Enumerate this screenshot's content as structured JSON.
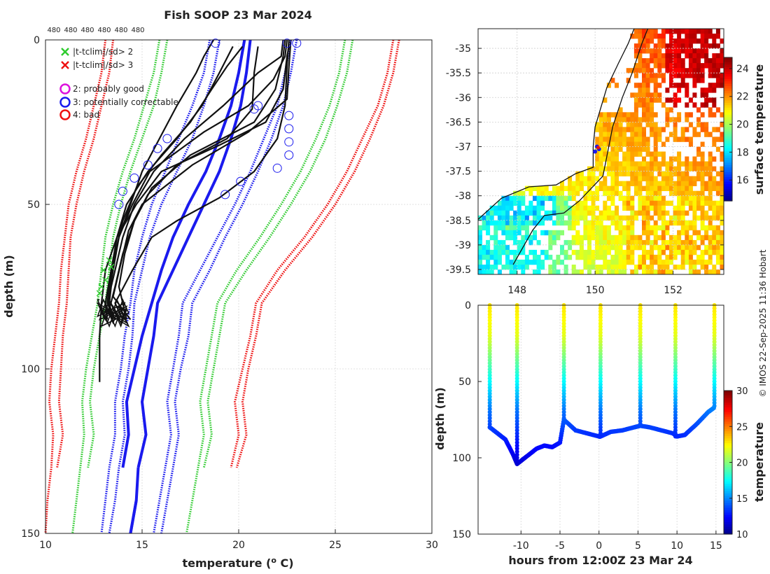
{
  "copyright": "© IMOS 22-Sep-2025 11:36 Hobart",
  "chart_data": [
    {
      "type": "line",
      "name": "temperature-profiles",
      "title": "Fish SOOP 23 Mar 2024",
      "xlabel": "temperature (",
      "xlabel_sup": "o",
      "xlabel_end": " C)",
      "ylabel": "depth (m)",
      "xlim": [
        10,
        30
      ],
      "ylim": [
        150,
        0
      ],
      "xticks": [
        "10",
        "15",
        "20",
        "25",
        "30"
      ],
      "yticks": [
        "0",
        "50",
        "100",
        "150"
      ],
      "top_labels": [
        "480",
        "480",
        "480",
        "480",
        "480",
        "480"
      ],
      "legend": [
        {
          "marker": "x",
          "color": "#2ecc2e",
          "label": "|t-tclim|/sd> 2"
        },
        {
          "marker": "x",
          "color": "#ee1111",
          "label": "|t-tclim|/sd> 3"
        },
        {
          "marker": "o",
          "color": "#dd11dd",
          "label": "2: probably good"
        },
        {
          "marker": "o",
          "color": "#1a1aee",
          "label": "3: potentially correctable"
        },
        {
          "marker": "o",
          "color": "#ee1111",
          "label": "4: bad"
        }
      ],
      "climatology": {
        "depth": [
          0,
          10,
          20,
          30,
          40,
          50,
          60,
          70,
          80,
          90,
          100,
          110,
          120,
          130,
          140,
          150
        ],
        "series": [
          {
            "name": "mean-a",
            "color": "#1a1aee",
            "style": "solid",
            "width": 4,
            "x": [
              20.6,
              20.4,
              20.1,
              19.6,
              19.0,
              18.2,
              17.4,
              16.6,
              15.8,
              15.6,
              15.3,
              15.0,
              15.2,
              14.8,
              null,
              null
            ]
          },
          {
            "name": "mean-b",
            "color": "#1a1aee",
            "style": "solid",
            "width": 4,
            "x": [
              null,
              null,
              null,
              null,
              null,
              null,
              null,
              null,
              null,
              null,
              null,
              null,
              null,
              null,
              14.7,
              14.4
            ],
            "note": "lower tail of mean"
          },
          {
            "name": "mean-c",
            "color": "#1a1aee",
            "style": "solid",
            "width": 4,
            "x": [
              20.3,
              20.0,
              19.6,
              19.0,
              18.3,
              17.4,
              16.6,
              16.0,
              15.5,
              15.0,
              14.6,
              14.2,
              14.3,
              14.0,
              null,
              null
            ]
          },
          {
            "name": "sd1-left",
            "color": "#1a1aee",
            "style": "dotted",
            "width": 3,
            "x": [
              18.5,
              18.2,
              17.6,
              16.9,
              16.2,
              15.5,
              15.0,
              14.6,
              14.4,
              14.1,
              13.9,
              13.6,
              13.6,
              13.3,
              13.1,
              12.9
            ]
          },
          {
            "name": "sd1-left-b",
            "color": "#1a1aee",
            "style": "dotted",
            "width": 3,
            "x": [
              19.0,
              18.7,
              18.2,
              17.6,
              16.8,
              16.0,
              15.4,
              15.0,
              14.6,
              14.5,
              14.3,
              14.0,
              14.1,
              13.8,
              13.6,
              13.3
            ]
          },
          {
            "name": "sd1-right",
            "color": "#1a1aee",
            "style": "dotted",
            "width": 3,
            "x": [
              22.7,
              22.4,
              22.0,
              21.3,
              20.6,
              19.8,
              18.9,
              18.0,
              17.1,
              16.9,
              16.6,
              16.3,
              16.5,
              16.2,
              15.9,
              15.6
            ]
          },
          {
            "name": "sd1-right-b",
            "color": "#1a1aee",
            "style": "dotted",
            "width": 3,
            "x": [
              23.0,
              22.7,
              22.3,
              21.7,
              21.0,
              20.2,
              19.3,
              18.5,
              17.6,
              17.4,
              17.0,
              16.7,
              16.9,
              16.6,
              16.3,
              16.0
            ]
          },
          {
            "name": "sd2-left",
            "color": "#33cc33",
            "style": "dotted",
            "width": 3,
            "x": [
              15.9,
              15.6,
              15.1,
              14.6,
              14.0,
              13.5,
              13.1,
              12.9,
              12.7,
              12.4,
              12.1,
              11.9,
              12.0,
              11.8,
              11.6,
              11.4
            ]
          },
          {
            "name": "sd2-left-b",
            "color": "#33cc33",
            "style": "dotted",
            "width": 3,
            "x": [
              16.3,
              16.0,
              15.6,
              15.0,
              14.4,
              13.9,
              13.5,
              13.3,
              13.1,
              12.8,
              12.5,
              12.3,
              12.5,
              12.2,
              null,
              null
            ]
          },
          {
            "name": "sd2-right",
            "color": "#33cc33",
            "style": "dotted",
            "width": 3,
            "x": [
              25.5,
              25.2,
              24.7,
              24.0,
              23.2,
              22.2,
              21.1,
              19.9,
              18.9,
              18.6,
              18.3,
              18.0,
              18.2,
              17.9,
              17.6,
              17.3
            ]
          },
          {
            "name": "sd2-right-b",
            "color": "#33cc33",
            "style": "dotted",
            "width": 3,
            "x": [
              25.9,
              25.6,
              25.1,
              24.5,
              23.7,
              22.7,
              21.6,
              20.4,
              19.3,
              19.0,
              18.7,
              18.4,
              18.6,
              18.2,
              null,
              null
            ]
          },
          {
            "name": "sd3-left",
            "color": "#ee1111",
            "style": "dotted",
            "width": 3,
            "x": [
              13.1,
              12.9,
              12.5,
              12.1,
              11.6,
              11.2,
              11.0,
              10.8,
              10.7,
              10.5,
              10.3,
              10.2,
              10.4,
              10.3,
              10.1,
              10.0
            ]
          },
          {
            "name": "sd3-left-b",
            "color": "#ee1111",
            "style": "dotted",
            "width": 3,
            "x": [
              13.5,
              13.3,
              12.9,
              12.5,
              12.0,
              11.6,
              11.3,
              11.2,
              11.1,
              10.9,
              10.8,
              10.7,
              10.9,
              10.6,
              null,
              null
            ]
          },
          {
            "name": "sd3-right",
            "color": "#ee1111",
            "style": "dotted",
            "width": 3,
            "x": [
              28.0,
              27.7,
              27.2,
              26.4,
              25.6,
              24.6,
              23.4,
              22.0,
              20.9,
              20.6,
              20.2,
              19.8,
              20.0,
              19.6,
              null,
              null
            ]
          },
          {
            "name": "sd3-right-b",
            "color": "#ee1111",
            "style": "dotted",
            "width": 3,
            "x": [
              28.3,
              28.0,
              27.5,
              26.8,
              26.0,
              25.0,
              23.8,
              22.4,
              21.2,
              20.9,
              20.5,
              20.2,
              20.4,
              19.9,
              null,
              null
            ]
          }
        ]
      },
      "profiles": [
        {
          "depth": [
            0,
            5,
            10,
            20,
            30,
            40,
            50,
            60,
            70,
            75,
            80,
            85
          ],
          "x": [
            22.3,
            22.2,
            21.0,
            19.2,
            17.2,
            15.6,
            14.6,
            14.0,
            13.6,
            13.4,
            13.3,
            13.5
          ]
        },
        {
          "depth": [
            0,
            5,
            12,
            20,
            28,
            40,
            50,
            60,
            70,
            80,
            85
          ],
          "x": [
            22.5,
            22.4,
            21.8,
            20.5,
            18.2,
            15.4,
            14.5,
            13.8,
            13.4,
            13.1,
            13.2
          ]
        },
        {
          "depth": [
            2,
            5,
            15,
            25,
            32,
            40,
            50,
            60,
            70,
            80,
            90,
            100,
            104
          ],
          "x": [
            22.6,
            22.5,
            22.3,
            21.4,
            19.0,
            16.0,
            14.7,
            13.7,
            13.1,
            12.9,
            12.8,
            12.8,
            12.8
          ]
        },
        {
          "depth": [
            0,
            5,
            15,
            25,
            35,
            45,
            55,
            65,
            75,
            82,
            86
          ],
          "x": [
            22.4,
            22.3,
            21.9,
            20.8,
            17.5,
            15.5,
            14.6,
            14.0,
            13.6,
            13.3,
            13.5
          ]
        },
        {
          "depth": [
            0,
            8,
            20,
            30,
            40,
            48,
            55,
            60,
            70,
            80,
            85
          ],
          "x": [
            22.6,
            22.5,
            22.4,
            22.0,
            20.8,
            19.0,
            16.8,
            15.5,
            14.5,
            13.6,
            14.0
          ]
        },
        {
          "depth": [
            0,
            5,
            10,
            20,
            30,
            40,
            50,
            60,
            70,
            80,
            84
          ],
          "x": [
            18.7,
            18.2,
            17.8,
            16.8,
            15.9,
            15.0,
            14.4,
            13.8,
            13.5,
            13.2,
            13.5
          ]
        },
        {
          "depth": [
            2,
            10,
            20,
            30,
            40,
            50,
            60,
            70,
            80,
            85
          ],
          "x": [
            19.7,
            19.0,
            18.1,
            16.8,
            15.3,
            14.2,
            13.7,
            13.4,
            13.2,
            13.6
          ]
        },
        {
          "depth": [
            2,
            8,
            15,
            25,
            35,
            45,
            55,
            65,
            75,
            82
          ],
          "x": [
            20.2,
            19.4,
            18.6,
            17.5,
            16.0,
            14.7,
            14.0,
            13.6,
            13.3,
            13.3
          ]
        },
        {
          "depth": [
            2,
            10,
            21,
            30,
            38,
            47,
            55,
            65,
            75,
            85
          ],
          "x": [
            21.0,
            20.8,
            20.7,
            19.4,
            16.8,
            15.3,
            14.6,
            14.1,
            13.8,
            14.2
          ]
        },
        {
          "depth": [
            0,
            8,
            18,
            28,
            38,
            50,
            58,
            68,
            78,
            85
          ],
          "x": [
            22.7,
            22.6,
            22.5,
            20.5,
            17.6,
            15.0,
            14.3,
            13.9,
            13.5,
            14.4
          ]
        }
      ],
      "flag_circles": [
        {
          "x": 18.8,
          "depth": 1
        },
        {
          "x": 22.5,
          "depth": 1
        },
        {
          "x": 23.0,
          "depth": 1
        },
        {
          "x": 21.0,
          "depth": 20
        },
        {
          "x": 20.8,
          "depth": 21
        },
        {
          "x": 22.6,
          "depth": 23
        },
        {
          "x": 22.6,
          "depth": 27
        },
        {
          "x": 22.6,
          "depth": 31
        },
        {
          "x": 22.6,
          "depth": 35
        },
        {
          "x": 16.3,
          "depth": 30
        },
        {
          "x": 15.8,
          "depth": 33
        },
        {
          "x": 15.3,
          "depth": 38
        },
        {
          "x": 14.6,
          "depth": 42
        },
        {
          "x": 22.0,
          "depth": 39
        },
        {
          "x": 20.1,
          "depth": 43
        },
        {
          "x": 19.3,
          "depth": 47
        },
        {
          "x": 14.0,
          "depth": 46
        },
        {
          "x": 13.8,
          "depth": 50
        }
      ],
      "green_x": [
        {
          "x": 13.3,
          "depth": 67
        },
        {
          "x": 13.0,
          "depth": 70
        },
        {
          "x": 13.1,
          "depth": 73
        },
        {
          "x": 12.9,
          "depth": 75
        },
        {
          "x": 12.8,
          "depth": 77
        },
        {
          "x": 13.4,
          "depth": 69
        }
      ]
    },
    {
      "type": "heatmap",
      "name": "sst-map",
      "colorbar_label": "surface temperature",
      "clim": [
        14.5,
        24.8
      ],
      "colorbar_ticks": [
        "16",
        "18",
        "20",
        "22",
        "24"
      ],
      "xlim": [
        147.0,
        153.3
      ],
      "ylim": [
        -39.6,
        -34.6
      ],
      "xticks": [
        "148",
        "150",
        "152"
      ],
      "yticks": [
        "-35",
        "-35.5",
        "-36",
        "-36.5",
        "-37",
        "-37.5",
        "-38",
        "-38.5",
        "-39",
        "-39.5"
      ],
      "coast": [
        {
          "lon": 147.0,
          "lat": -38.48
        },
        {
          "lon": 147.6,
          "lat": -38.05
        },
        {
          "lon": 148.3,
          "lat": -37.82
        },
        {
          "lon": 149.0,
          "lat": -37.78
        },
        {
          "lon": 149.5,
          "lat": -37.55
        },
        {
          "lon": 149.95,
          "lat": -37.42
        },
        {
          "lon": 149.95,
          "lat": -37.0
        },
        {
          "lon": 150.0,
          "lat": -36.6
        },
        {
          "lon": 150.15,
          "lat": -36.2
        },
        {
          "lon": 150.3,
          "lat": -35.8
        },
        {
          "lon": 150.6,
          "lat": -35.3
        },
        {
          "lon": 150.85,
          "lat": -34.9
        },
        {
          "lon": 151.0,
          "lat": -34.6
        }
      ],
      "track": [
        {
          "lon": 150.05,
          "lat": -37.0
        },
        {
          "lon": 150.1,
          "lat": -37.05
        },
        {
          "lon": 150.0,
          "lat": -37.1
        }
      ]
    },
    {
      "type": "scatter",
      "name": "depth-time",
      "xlabel": "hours from 12:00Z 23 Mar 24",
      "ylabel": "depth (m)",
      "colorbar_label": "temperature",
      "clim": [
        10,
        30
      ],
      "colorbar_ticks": [
        "10",
        "15",
        "20",
        "25",
        "30"
      ],
      "xlim": [
        -15.5,
        16
      ],
      "ylim": [
        150,
        0
      ],
      "xticks": [
        "-10",
        "-5",
        "0",
        "5",
        "10",
        "15"
      ],
      "yticks": [
        "0",
        "50",
        "100",
        "150"
      ],
      "casts": [
        -14.0,
        -10.5,
        -4.5,
        0.2,
        5.3,
        9.8,
        14.8
      ],
      "bottom_track": {
        "hours": [
          -14.0,
          -13.0,
          -12.0,
          -11.0,
          -10.5,
          -9.5,
          -8.0,
          -7.0,
          -6.0,
          -5.0,
          -4.5,
          -3.0,
          -1.5,
          0.0,
          0.2,
          1.5,
          3.0,
          4.5,
          5.3,
          6.5,
          8.0,
          9.5,
          10.0,
          11.0,
          12.5,
          14.0,
          14.8
        ],
        "depth": [
          80,
          84,
          88,
          98,
          104,
          100,
          94,
          92,
          93,
          90,
          75,
          82,
          84,
          86,
          86,
          83,
          82,
          80,
          79,
          80,
          82,
          84,
          86,
          85,
          78,
          70,
          67
        ]
      }
    }
  ]
}
